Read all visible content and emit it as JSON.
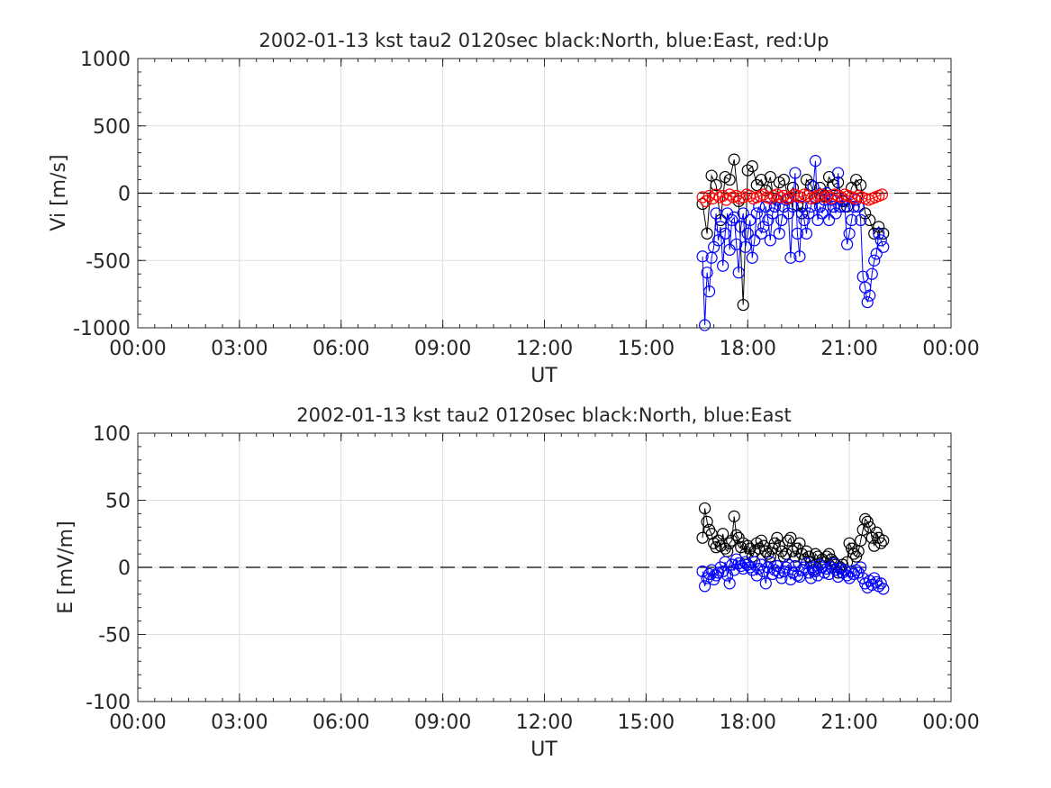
{
  "chart_data": [
    {
      "type": "line",
      "title": "2002-01-13 kst tau2 0120sec black:North, blue:East, red:Up",
      "xlabel": "UT",
      "ylabel": "Vi [m/s]",
      "xlim": [
        "00:00",
        "24:00"
      ],
      "ylim": [
        -1000,
        1000
      ],
      "xticks": [
        "00:00",
        "03:00",
        "06:00",
        "09:00",
        "12:00",
        "15:00",
        "18:00",
        "21:00",
        "00:00"
      ],
      "yticks": [
        "-1000",
        "-500",
        "0",
        "500",
        "1000"
      ],
      "grid": true,
      "zero_line": "dashed",
      "marker": "open-circle",
      "series": [
        {
          "name": "North",
          "color": "#000000",
          "x": [
            "16:40",
            "16:48",
            "16:56",
            "17:04",
            "17:12",
            "17:20",
            "17:28",
            "17:36",
            "17:44",
            "17:52",
            "18:00",
            "18:08",
            "18:16",
            "18:24",
            "18:32",
            "18:40",
            "18:48",
            "18:56",
            "19:04",
            "19:12",
            "19:20",
            "19:28",
            "19:36",
            "19:44",
            "19:52",
            "20:00",
            "20:08",
            "20:16",
            "20:24",
            "20:32",
            "20:40",
            "20:48",
            "20:56",
            "21:04",
            "21:12",
            "21:20",
            "21:28",
            "21:36",
            "21:44",
            "21:52",
            "22:00"
          ],
          "values": [
            -80,
            -300,
            130,
            60,
            -200,
            120,
            100,
            250,
            -60,
            -830,
            170,
            200,
            60,
            100,
            20,
            120,
            -100,
            80,
            100,
            -40,
            40,
            -90,
            -150,
            100,
            60,
            -40,
            40,
            -20,
            120,
            60,
            80,
            -60,
            -100,
            40,
            100,
            60,
            -150,
            -200,
            -300,
            -250,
            -300
          ]
        },
        {
          "name": "East",
          "color": "#0000ff",
          "x": [
            "16:40",
            "16:44",
            "16:48",
            "16:52",
            "16:56",
            "17:00",
            "17:04",
            "17:08",
            "17:12",
            "17:16",
            "17:20",
            "17:24",
            "17:28",
            "17:32",
            "17:36",
            "17:40",
            "17:44",
            "17:48",
            "17:52",
            "17:56",
            "18:00",
            "18:04",
            "18:08",
            "18:12",
            "18:16",
            "18:20",
            "18:24",
            "18:28",
            "18:32",
            "18:36",
            "18:40",
            "18:44",
            "18:48",
            "18:52",
            "18:56",
            "19:00",
            "19:04",
            "19:08",
            "19:12",
            "19:16",
            "19:20",
            "19:24",
            "19:28",
            "19:32",
            "19:36",
            "19:40",
            "19:44",
            "19:48",
            "19:52",
            "19:56",
            "20:00",
            "20:04",
            "20:08",
            "20:12",
            "20:16",
            "20:20",
            "20:24",
            "20:28",
            "20:32",
            "20:36",
            "20:40",
            "20:44",
            "20:48",
            "20:52",
            "20:56",
            "21:00",
            "21:04",
            "21:08",
            "21:12",
            "21:16",
            "21:20",
            "21:24",
            "21:28",
            "21:32",
            "21:36",
            "21:40",
            "21:44",
            "21:48",
            "21:52",
            "21:56",
            "22:00"
          ],
          "values": [
            -470,
            -980,
            -590,
            -730,
            -480,
            -400,
            -150,
            -350,
            -250,
            -540,
            -300,
            -150,
            -420,
            -200,
            -180,
            -380,
            -590,
            -250,
            -150,
            -400,
            -300,
            -200,
            -480,
            -350,
            -150,
            -100,
            -300,
            -250,
            -100,
            -200,
            -350,
            -150,
            -100,
            -50,
            -300,
            -200,
            -100,
            -50,
            -150,
            -480,
            -100,
            150,
            -300,
            -470,
            -100,
            -200,
            -300,
            -150,
            -100,
            50,
            240,
            -200,
            -100,
            -150,
            -50,
            0,
            -200,
            -50,
            -100,
            -150,
            150,
            -100,
            -50,
            -100,
            -380,
            -300,
            -200,
            -100,
            -50,
            -100,
            -200,
            -620,
            -700,
            -810,
            -760,
            -600,
            -500,
            -450,
            -300,
            -350,
            -400
          ]
        },
        {
          "name": "Up",
          "color": "#ff0000",
          "x": [
            "16:40",
            "16:46",
            "16:52",
            "16:58",
            "17:04",
            "17:10",
            "17:16",
            "17:22",
            "17:28",
            "17:34",
            "17:40",
            "17:46",
            "17:52",
            "17:58",
            "18:04",
            "18:10",
            "18:16",
            "18:22",
            "18:28",
            "18:34",
            "18:40",
            "18:46",
            "18:52",
            "18:58",
            "19:04",
            "19:10",
            "19:16",
            "19:22",
            "19:28",
            "19:34",
            "19:40",
            "19:46",
            "19:52",
            "19:58",
            "20:04",
            "20:10",
            "20:16",
            "20:22",
            "20:28",
            "20:34",
            "20:40",
            "20:46",
            "20:52",
            "20:58",
            "21:04",
            "21:10",
            "21:16",
            "21:22",
            "21:28",
            "21:34",
            "21:40",
            "21:46",
            "21:52",
            "21:58"
          ],
          "values": [
            -30,
            -60,
            -20,
            -40,
            -10,
            -30,
            -20,
            -50,
            -10,
            -30,
            -20,
            -40,
            -30,
            -10,
            -20,
            -40,
            -30,
            -20,
            -10,
            -30,
            -40,
            -20,
            -10,
            -30,
            -20,
            -40,
            -30,
            -10,
            -20,
            -30,
            -10,
            -20,
            -40,
            -30,
            -20,
            -10,
            -30,
            -20,
            -40,
            -10,
            -20,
            -30,
            -10,
            -20,
            -30,
            -40,
            -20,
            -30,
            -40,
            -50,
            -40,
            -30,
            -20,
            -10
          ]
        }
      ]
    },
    {
      "type": "line",
      "title": "2002-01-13 kst tau2 0120sec black:North, blue:East",
      "xlabel": "UT",
      "ylabel": "E [mV/m]",
      "xlim": [
        "00:00",
        "24:00"
      ],
      "ylim": [
        -100,
        100
      ],
      "xticks": [
        "00:00",
        "03:00",
        "06:00",
        "09:00",
        "12:00",
        "15:00",
        "18:00",
        "21:00",
        "00:00"
      ],
      "yticks": [
        "-100",
        "-50",
        "0",
        "50",
        "100"
      ],
      "grid": true,
      "zero_line": "dashed",
      "marker": "open-circle",
      "series": [
        {
          "name": "North",
          "color": "#000000",
          "x": [
            "16:40",
            "16:44",
            "16:48",
            "16:52",
            "16:56",
            "17:00",
            "17:04",
            "17:08",
            "17:12",
            "17:16",
            "17:20",
            "17:24",
            "17:28",
            "17:32",
            "17:36",
            "17:40",
            "17:44",
            "17:48",
            "17:52",
            "17:56",
            "18:00",
            "18:04",
            "18:08",
            "18:12",
            "18:16",
            "18:20",
            "18:24",
            "18:28",
            "18:32",
            "18:36",
            "18:40",
            "18:44",
            "18:48",
            "18:52",
            "18:56",
            "19:00",
            "19:04",
            "19:08",
            "19:12",
            "19:16",
            "19:20",
            "19:24",
            "19:28",
            "19:32",
            "19:36",
            "19:40",
            "19:44",
            "19:48",
            "19:52",
            "19:56",
            "20:00",
            "20:04",
            "20:08",
            "20:12",
            "20:16",
            "20:20",
            "20:24",
            "20:28",
            "20:32",
            "20:36",
            "20:40",
            "20:44",
            "20:48",
            "20:52",
            "20:56",
            "21:00",
            "21:04",
            "21:08",
            "21:12",
            "21:16",
            "21:20",
            "21:24",
            "21:28",
            "21:32",
            "21:36",
            "21:40",
            "21:44",
            "21:48",
            "21:52",
            "21:56",
            "22:00"
          ],
          "values": [
            22,
            44,
            34,
            28,
            25,
            18,
            15,
            20,
            16,
            25,
            14,
            12,
            18,
            20,
            38,
            24,
            22,
            15,
            18,
            10,
            16,
            14,
            8,
            12,
            18,
            14,
            20,
            16,
            12,
            10,
            8,
            14,
            18,
            22,
            16,
            12,
            8,
            10,
            20,
            22,
            12,
            8,
            14,
            18,
            10,
            6,
            12,
            8,
            4,
            -2,
            10,
            8,
            2,
            6,
            4,
            8,
            10,
            6,
            4,
            2,
            -4,
            0,
            2,
            -2,
            4,
            18,
            14,
            10,
            8,
            12,
            20,
            28,
            36,
            34,
            30,
            22,
            16,
            26,
            22,
            18,
            20
          ]
        },
        {
          "name": "East",
          "color": "#0000ff",
          "x": [
            "16:40",
            "16:44",
            "16:48",
            "16:52",
            "16:56",
            "17:00",
            "17:04",
            "17:08",
            "17:12",
            "17:16",
            "17:20",
            "17:24",
            "17:28",
            "17:32",
            "17:36",
            "17:40",
            "17:44",
            "17:48",
            "17:52",
            "17:56",
            "18:00",
            "18:04",
            "18:08",
            "18:12",
            "18:16",
            "18:20",
            "18:24",
            "18:28",
            "18:32",
            "18:36",
            "18:40",
            "18:44",
            "18:48",
            "18:52",
            "18:56",
            "19:00",
            "19:04",
            "19:08",
            "19:12",
            "19:16",
            "19:20",
            "19:24",
            "19:28",
            "19:32",
            "19:36",
            "19:40",
            "19:44",
            "19:48",
            "19:52",
            "19:56",
            "20:00",
            "20:04",
            "20:08",
            "20:12",
            "20:16",
            "20:20",
            "20:24",
            "20:28",
            "20:32",
            "20:36",
            "20:40",
            "20:44",
            "20:48",
            "20:52",
            "20:56",
            "21:00",
            "21:04",
            "21:08",
            "21:12",
            "21:16",
            "21:20",
            "21:24",
            "21:28",
            "21:32",
            "21:36",
            "21:40",
            "21:44",
            "21:48",
            "21:52",
            "21:56",
            "22:00"
          ],
          "values": [
            -3,
            -14,
            -8,
            -5,
            -2,
            -9,
            -6,
            -4,
            0,
            -3,
            4,
            -6,
            -12,
            2,
            -2,
            6,
            3,
            1,
            -1,
            4,
            2,
            0,
            -2,
            4,
            -6,
            -1,
            2,
            -3,
            -12,
            0,
            4,
            -5,
            -2,
            1,
            -4,
            -8,
            -3,
            0,
            2,
            -9,
            -4,
            1,
            -6,
            -7,
            -2,
            0,
            3,
            -4,
            -8,
            0,
            -3,
            -6,
            2,
            0,
            -4,
            -1,
            -5,
            0,
            3,
            -2,
            -7,
            -1,
            -4,
            -2,
            -6,
            -8,
            -3,
            -5,
            -2,
            -4,
            0,
            -8,
            -12,
            -15,
            -10,
            -13,
            -8,
            -11,
            -14,
            -12,
            -16
          ]
        }
      ]
    }
  ]
}
